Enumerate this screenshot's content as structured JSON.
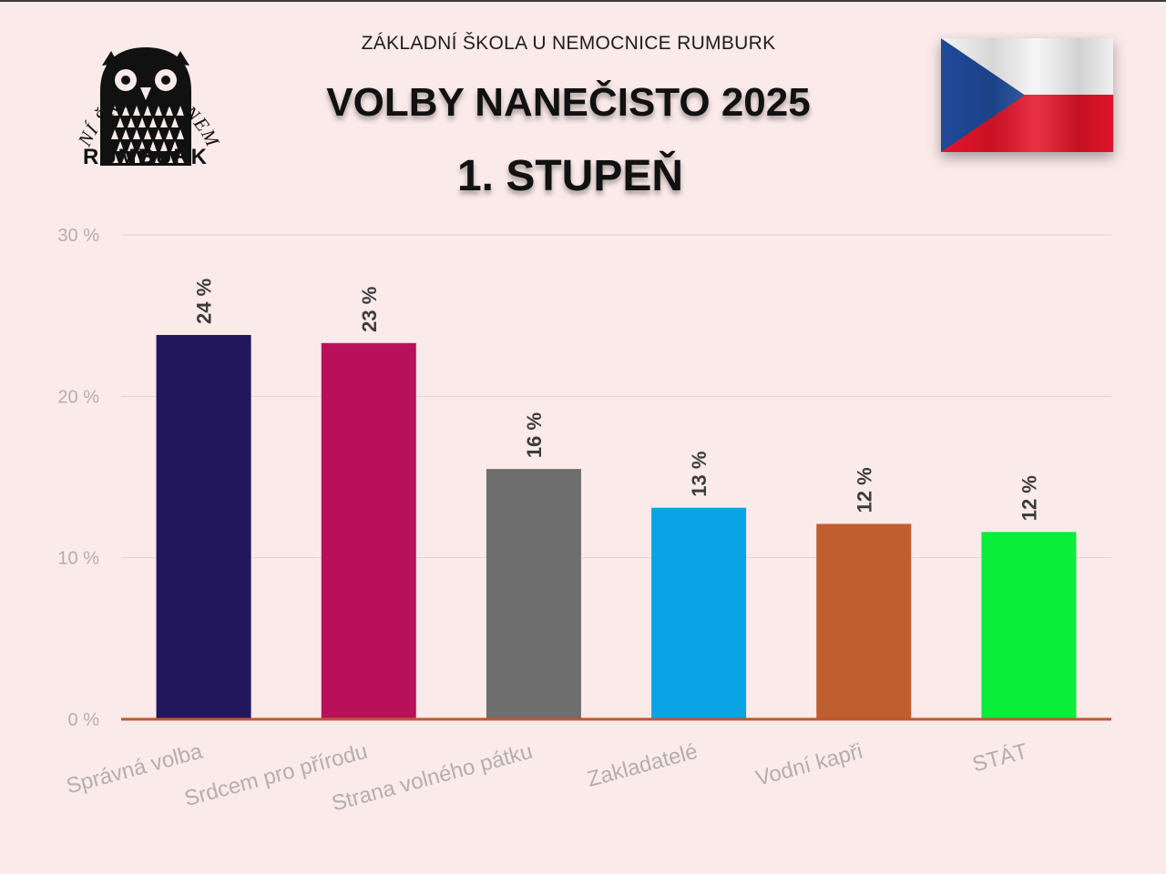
{
  "header": {
    "school_name": "ZÁKLADNÍ ŠKOLA U NEMOCNICE RUMBURK",
    "title": "VOLBY NANEČISTO 2025",
    "subtitle": "1. STUPEŇ"
  },
  "logo": {
    "arc_text": "ZÁKLADNÍ ŠKOLA U NEMOCNICE",
    "bottom_text": "RUMBURK",
    "icon": "owl-logo-icon"
  },
  "flag": {
    "icon": "czech-flag-icon",
    "colors": {
      "white": "#f4f4f4",
      "red": "#e4142a",
      "blue": "#1f4a99"
    }
  },
  "chart_data": {
    "type": "bar",
    "categories": [
      "Správná volba",
      "Srdcem pro přírodu",
      "Strana volného pátku",
      "Zakladatelé",
      "Vodní kapři",
      "STÁT"
    ],
    "values": [
      23.8,
      23.3,
      15.5,
      13.1,
      12.1,
      11.6
    ],
    "value_labels": [
      "24 %",
      "23 %",
      "16 %",
      "13 %",
      "12 %",
      "12 %"
    ],
    "colors": [
      "#21155e",
      "#b9105a",
      "#6e6e6e",
      "#0aa3e6",
      "#bf5f2f",
      "#0aee3a"
    ],
    "y_ticks": [
      0,
      10,
      20,
      30
    ],
    "y_tick_labels": [
      "0 %",
      "10 %",
      "20 %",
      "30 %"
    ],
    "ylim": [
      0,
      30
    ],
    "grid": true,
    "legend": "none",
    "axis_color": "#c0572e",
    "grid_color": "#e2d3d3",
    "label_color": "#b5aeae"
  }
}
